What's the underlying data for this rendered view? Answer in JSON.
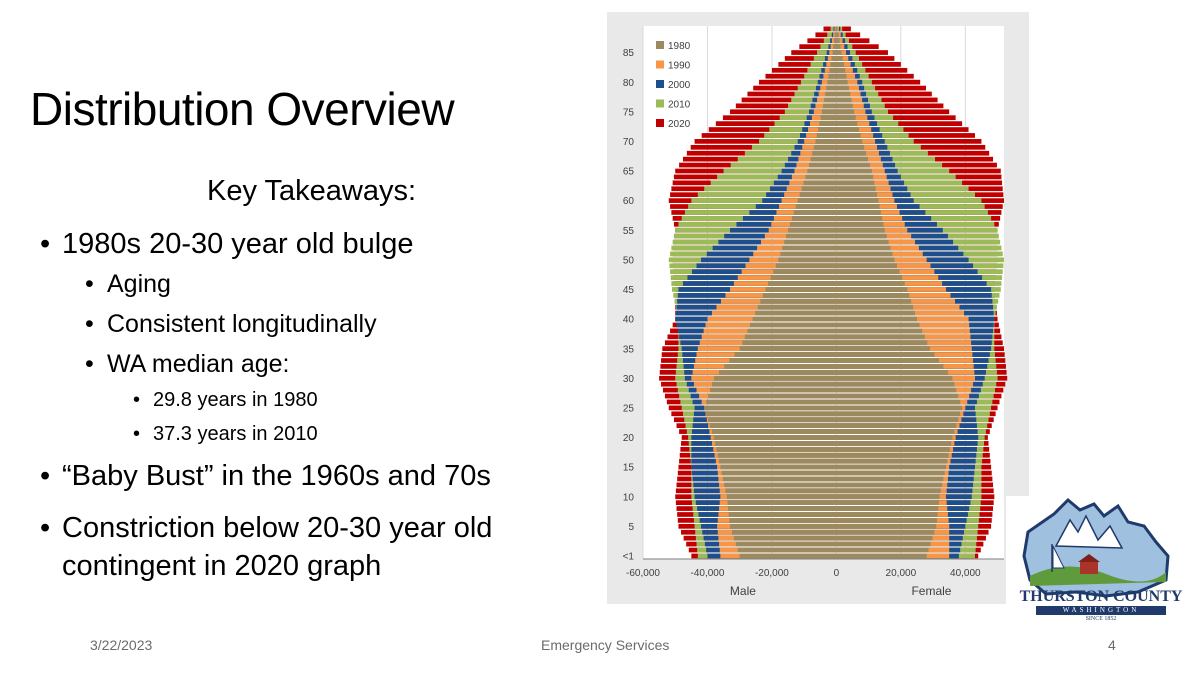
{
  "slide": {
    "title": "Distribution Overview",
    "subtitle": "Key Takeaways:",
    "bullets": [
      {
        "level": 1,
        "text": "1980s 20-30 year old bulge"
      },
      {
        "level": 2,
        "text": "Aging"
      },
      {
        "level": 2,
        "text": "Consistent longitudinally"
      },
      {
        "level": 2,
        "text": "WA median age:"
      },
      {
        "level": 3,
        "text": "29.8 years in 1980"
      },
      {
        "level": 3,
        "text": "37.3 years in 2010"
      },
      {
        "level": 1,
        "text": "“Baby Bust” in the 1960s and 70s"
      },
      {
        "level": 1,
        "text": "Constriction below 20-30 year old"
      },
      {
        "level": 1,
        "text": "contingent in 2020 graph"
      }
    ],
    "bullet_glyph": "•",
    "footer": {
      "date": "3/22/2023",
      "center": "Emergency Services",
      "page": "4"
    }
  },
  "logo": {
    "name": "THURSTON COUNTY",
    "state": "WASHINGTON",
    "since": "SINCE 1852",
    "colors": {
      "navy": "#1f3a6b",
      "sky": "#9fc0de",
      "green": "#5f9a3c",
      "barn": "#a8342a"
    }
  },
  "chart_data": {
    "type": "bar",
    "orientation": "horizontal",
    "subtype": "population-pyramid",
    "age_tick_labels": [
      "<1",
      "5",
      "10",
      "15",
      "20",
      "25",
      "30",
      "35",
      "40",
      "45",
      "50",
      "55",
      "60",
      "65",
      "70",
      "75",
      "80",
      "85"
    ],
    "x_tick_labels": [
      "-60,000",
      "-40,000",
      "-20,000",
      "0",
      "20,000",
      "40,000"
    ],
    "xlim": [
      -60000,
      52000
    ],
    "x_side_labels": {
      "left": "Male",
      "right": "Female"
    },
    "legend": {
      "placement": "top-left",
      "entries": [
        "1980",
        "1990",
        "2000",
        "2010",
        "2020"
      ]
    },
    "grid": "vertical",
    "ages": [
      0,
      5,
      10,
      15,
      20,
      25,
      30,
      35,
      40,
      45,
      50,
      55,
      60,
      65,
      70,
      75,
      80,
      85,
      89
    ],
    "series": [
      {
        "name": "1980",
        "color": "#9b8a5f",
        "male": [
          -30000,
          -33000,
          -34000,
          -36000,
          -38000,
          -41000,
          -38000,
          -30000,
          -26000,
          -22000,
          -18000,
          -15000,
          -12000,
          -9000,
          -6500,
          -4500,
          -2800,
          -1200,
          -300
        ],
        "female": [
          28000,
          31000,
          32000,
          34000,
          36000,
          39000,
          36000,
          29000,
          25000,
          22000,
          18000,
          15000,
          13000,
          11000,
          8000,
          5500,
          3500,
          1600,
          400
        ]
      },
      {
        "name": "1990",
        "color": "#f79646",
        "male": [
          -36000,
          -37000,
          -36000,
          -37000,
          -39000,
          -41000,
          -45000,
          -43000,
          -40000,
          -33000,
          -27000,
          -21000,
          -17000,
          -13000,
          -10000,
          -7000,
          -4500,
          -2200,
          -600
        ],
        "female": [
          35000,
          35000,
          34000,
          35000,
          37000,
          40000,
          43000,
          42000,
          41000,
          34000,
          28000,
          22000,
          18000,
          15000,
          12000,
          9000,
          6500,
          3000,
          800
        ]
      },
      {
        "name": "2000",
        "color": "#1f4e8c",
        "male": [
          -40000,
          -42000,
          -44000,
          -45000,
          -45000,
          -44000,
          -47000,
          -48000,
          -50000,
          -49000,
          -42000,
          -33000,
          -23000,
          -17000,
          -12000,
          -8500,
          -5800,
          -3000,
          -900
        ],
        "female": [
          38000,
          40000,
          42000,
          43000,
          44000,
          43000,
          46000,
          48000,
          49000,
          48000,
          41000,
          33000,
          24000,
          19000,
          15000,
          11000,
          8000,
          4200,
          1200
        ]
      },
      {
        "name": "2010",
        "color": "#9bbb59",
        "male": [
          -43000,
          -44000,
          -45000,
          -45000,
          -46000,
          -48000,
          -50000,
          -49000,
          -49000,
          -51000,
          -52000,
          -50000,
          -45000,
          -35000,
          -24000,
          -16000,
          -11000,
          -6000,
          -1800
        ]
      },
      {
        "name": "2020",
        "color": "#c00000",
        "male": [
          -45000,
          -49000,
          -50000,
          -49000,
          -48000,
          -52000,
          -55000,
          -54000,
          -50000,
          -50000,
          -51000,
          -50000,
          -52000,
          -50000,
          -44000,
          -33000,
          -24000,
          -14000,
          -4000
        ],
        "female": [
          44000,
          48000,
          49000,
          48000,
          47000,
          50000,
          53000,
          52000,
          50000,
          49000,
          50000,
          50000,
          52000,
          51000,
          45000,
          35000,
          26000,
          16000,
          4500
        ]
      }
    ]
  }
}
